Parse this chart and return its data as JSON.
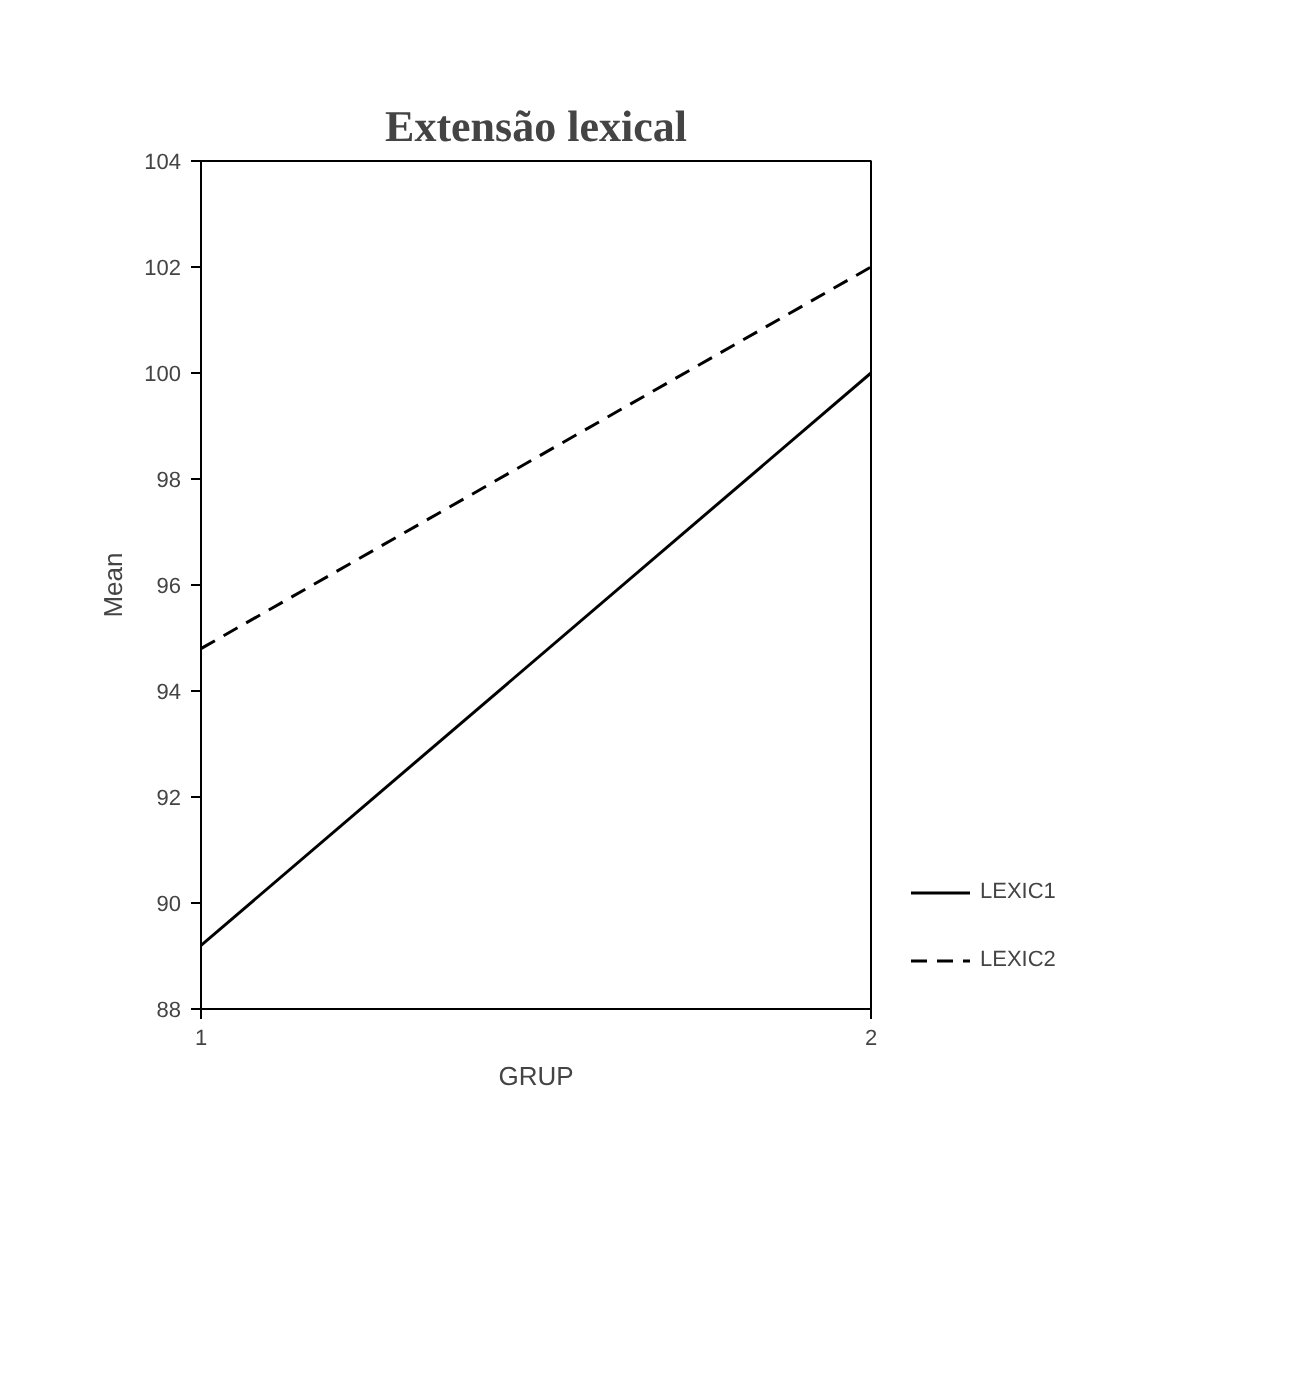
{
  "chart_data": {
    "type": "line",
    "title": "Extensão lexical",
    "xlabel": "GRUP",
    "ylabel": "Mean",
    "x": [
      1,
      2
    ],
    "xlim": [
      1,
      2
    ],
    "xticks": [
      1,
      2
    ],
    "ylim": [
      88,
      104
    ],
    "yticks": [
      88,
      90,
      92,
      94,
      96,
      98,
      100,
      102,
      104
    ],
    "series": [
      {
        "name": "LEXIC1",
        "color": "#000000",
        "values": [
          89.2,
          100
        ],
        "line_style": "solid"
      },
      {
        "name": "LEXIC2",
        "color": "#000000",
        "values": [
          94.8,
          102
        ],
        "line_style": "dashed"
      }
    ],
    "grid": false,
    "legend": "right",
    "marker": "none"
  }
}
